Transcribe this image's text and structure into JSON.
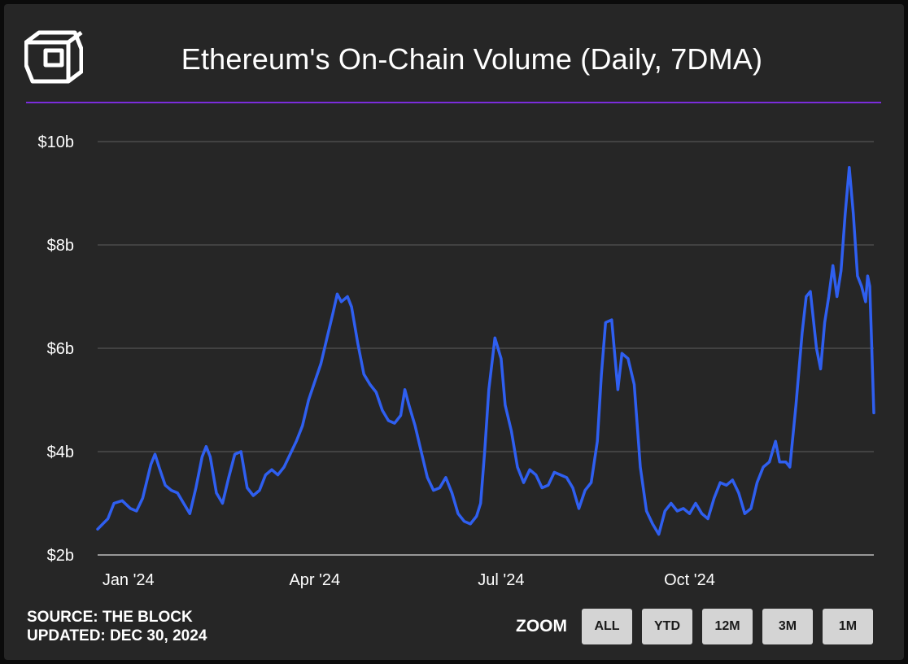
{
  "title": "Ethereum's On-Chain Volume (Daily, 7DMA)",
  "footer": {
    "source": "SOURCE: THE BLOCK",
    "updated": "UPDATED: DEC 30, 2024"
  },
  "zoom": {
    "label": "ZOOM",
    "options": [
      "ALL",
      "YTD",
      "12M",
      "3M",
      "1M"
    ]
  },
  "colors": {
    "background": "#262626",
    "line": "#2f5ff0",
    "accent_rule": "#7b2cdc",
    "grid": "#5f5f5f",
    "button": "#d4d4d4"
  },
  "icons": {
    "logo": "the-block-cube-logo"
  },
  "chart_data": {
    "type": "line",
    "title": "Ethereum's On-Chain Volume (Daily, 7DMA)",
    "y_ticks": [
      "$2b",
      "$4b",
      "$6b",
      "$8b",
      "$10b"
    ],
    "y_tick_values": [
      2,
      4,
      6,
      8,
      10
    ],
    "ylim": [
      2,
      10
    ],
    "x_ticks": [
      "Jan '24",
      "Apr '24",
      "Jul '24",
      "Oct '24"
    ],
    "x_tick_dates": [
      "2024-01-01",
      "2024-04-01",
      "2024-07-01",
      "2024-10-01"
    ],
    "xlim": [
      "2023-12-17",
      "2024-12-30"
    ],
    "grid": true,
    "series": [
      {
        "values_unit": "USD billions",
        "points": [
          [
            "2023-12-17",
            2.5
          ],
          [
            "2023-12-22",
            2.7
          ],
          [
            "2023-12-25",
            3.0
          ],
          [
            "2023-12-29",
            3.05
          ],
          [
            "2024-01-02",
            2.9
          ],
          [
            "2024-01-05",
            2.85
          ],
          [
            "2024-01-08",
            3.1
          ],
          [
            "2024-01-12",
            3.75
          ],
          [
            "2024-01-14",
            3.95
          ],
          [
            "2024-01-16",
            3.7
          ],
          [
            "2024-01-19",
            3.35
          ],
          [
            "2024-01-22",
            3.25
          ],
          [
            "2024-01-25",
            3.2
          ],
          [
            "2024-01-28",
            3.0
          ],
          [
            "2024-01-31",
            2.8
          ],
          [
            "2024-02-03",
            3.3
          ],
          [
            "2024-02-06",
            3.9
          ],
          [
            "2024-02-08",
            4.1
          ],
          [
            "2024-02-10",
            3.9
          ],
          [
            "2024-02-13",
            3.2
          ],
          [
            "2024-02-16",
            3.0
          ],
          [
            "2024-02-19",
            3.5
          ],
          [
            "2024-02-22",
            3.95
          ],
          [
            "2024-02-25",
            4.0
          ],
          [
            "2024-02-28",
            3.3
          ],
          [
            "2024-03-02",
            3.15
          ],
          [
            "2024-03-05",
            3.25
          ],
          [
            "2024-03-08",
            3.55
          ],
          [
            "2024-03-11",
            3.65
          ],
          [
            "2024-03-14",
            3.55
          ],
          [
            "2024-03-17",
            3.7
          ],
          [
            "2024-03-20",
            3.95
          ],
          [
            "2024-03-23",
            4.2
          ],
          [
            "2024-03-26",
            4.5
          ],
          [
            "2024-03-29",
            5.0
          ],
          [
            "2024-04-01",
            5.35
          ],
          [
            "2024-04-04",
            5.7
          ],
          [
            "2024-04-07",
            6.2
          ],
          [
            "2024-04-10",
            6.7
          ],
          [
            "2024-04-12",
            7.05
          ],
          [
            "2024-04-14",
            6.9
          ],
          [
            "2024-04-17",
            7.0
          ],
          [
            "2024-04-19",
            6.8
          ],
          [
            "2024-04-22",
            6.1
          ],
          [
            "2024-04-25",
            5.5
          ],
          [
            "2024-04-28",
            5.3
          ],
          [
            "2024-05-01",
            5.15
          ],
          [
            "2024-05-04",
            4.8
          ],
          [
            "2024-05-07",
            4.6
          ],
          [
            "2024-05-10",
            4.55
          ],
          [
            "2024-05-13",
            4.7
          ],
          [
            "2024-05-15",
            5.2
          ],
          [
            "2024-05-17",
            4.9
          ],
          [
            "2024-05-20",
            4.5
          ],
          [
            "2024-05-23",
            4.0
          ],
          [
            "2024-05-26",
            3.5
          ],
          [
            "2024-05-29",
            3.25
          ],
          [
            "2024-06-01",
            3.3
          ],
          [
            "2024-06-04",
            3.5
          ],
          [
            "2024-06-07",
            3.2
          ],
          [
            "2024-06-10",
            2.8
          ],
          [
            "2024-06-13",
            2.65
          ],
          [
            "2024-06-16",
            2.6
          ],
          [
            "2024-06-19",
            2.75
          ],
          [
            "2024-06-21",
            3.0
          ],
          [
            "2024-06-23",
            4.0
          ],
          [
            "2024-06-25",
            5.2
          ],
          [
            "2024-06-28",
            6.2
          ],
          [
            "2024-07-01",
            5.8
          ],
          [
            "2024-07-03",
            4.9
          ],
          [
            "2024-07-06",
            4.4
          ],
          [
            "2024-07-09",
            3.7
          ],
          [
            "2024-07-12",
            3.4
          ],
          [
            "2024-07-15",
            3.65
          ],
          [
            "2024-07-18",
            3.55
          ],
          [
            "2024-07-21",
            3.3
          ],
          [
            "2024-07-24",
            3.35
          ],
          [
            "2024-07-27",
            3.6
          ],
          [
            "2024-07-30",
            3.55
          ],
          [
            "2024-08-02",
            3.5
          ],
          [
            "2024-08-05",
            3.3
          ],
          [
            "2024-08-08",
            2.9
          ],
          [
            "2024-08-11",
            3.25
          ],
          [
            "2024-08-14",
            3.4
          ],
          [
            "2024-08-17",
            4.2
          ],
          [
            "2024-08-19",
            5.5
          ],
          [
            "2024-08-21",
            6.5
          ],
          [
            "2024-08-24",
            6.55
          ],
          [
            "2024-08-27",
            5.2
          ],
          [
            "2024-08-29",
            5.9
          ],
          [
            "2024-09-01",
            5.8
          ],
          [
            "2024-09-04",
            5.3
          ],
          [
            "2024-09-07",
            3.7
          ],
          [
            "2024-09-10",
            2.85
          ],
          [
            "2024-09-13",
            2.6
          ],
          [
            "2024-09-16",
            2.4
          ],
          [
            "2024-09-19",
            2.85
          ],
          [
            "2024-09-22",
            3.0
          ],
          [
            "2024-09-25",
            2.85
          ],
          [
            "2024-09-28",
            2.9
          ],
          [
            "2024-10-01",
            2.8
          ],
          [
            "2024-10-04",
            3.0
          ],
          [
            "2024-10-07",
            2.8
          ],
          [
            "2024-10-10",
            2.7
          ],
          [
            "2024-10-13",
            3.1
          ],
          [
            "2024-10-16",
            3.4
          ],
          [
            "2024-10-19",
            3.35
          ],
          [
            "2024-10-22",
            3.45
          ],
          [
            "2024-10-25",
            3.2
          ],
          [
            "2024-10-28",
            2.8
          ],
          [
            "2024-10-31",
            2.9
          ],
          [
            "2024-11-03",
            3.4
          ],
          [
            "2024-11-06",
            3.7
          ],
          [
            "2024-11-09",
            3.8
          ],
          [
            "2024-11-12",
            4.2
          ],
          [
            "2024-11-14",
            3.8
          ],
          [
            "2024-11-17",
            3.8
          ],
          [
            "2024-11-19",
            3.7
          ],
          [
            "2024-11-22",
            4.9
          ],
          [
            "2024-11-25",
            6.3
          ],
          [
            "2024-11-27",
            7.0
          ],
          [
            "2024-11-29",
            7.1
          ],
          [
            "2024-12-02",
            6.0
          ],
          [
            "2024-12-04",
            5.6
          ],
          [
            "2024-12-06",
            6.5
          ],
          [
            "2024-12-08",
            7.0
          ],
          [
            "2024-12-10",
            7.6
          ],
          [
            "2024-12-12",
            7.0
          ],
          [
            "2024-12-14",
            7.5
          ],
          [
            "2024-12-16",
            8.6
          ],
          [
            "2024-12-18",
            9.5
          ],
          [
            "2024-12-20",
            8.6
          ],
          [
            "2024-12-22",
            7.4
          ],
          [
            "2024-12-24",
            7.2
          ],
          [
            "2024-12-26",
            6.9
          ],
          [
            "2024-12-27",
            7.4
          ],
          [
            "2024-12-28",
            7.2
          ],
          [
            "2024-12-29",
            6.0
          ],
          [
            "2024-12-30",
            4.75
          ]
        ]
      }
    ]
  }
}
